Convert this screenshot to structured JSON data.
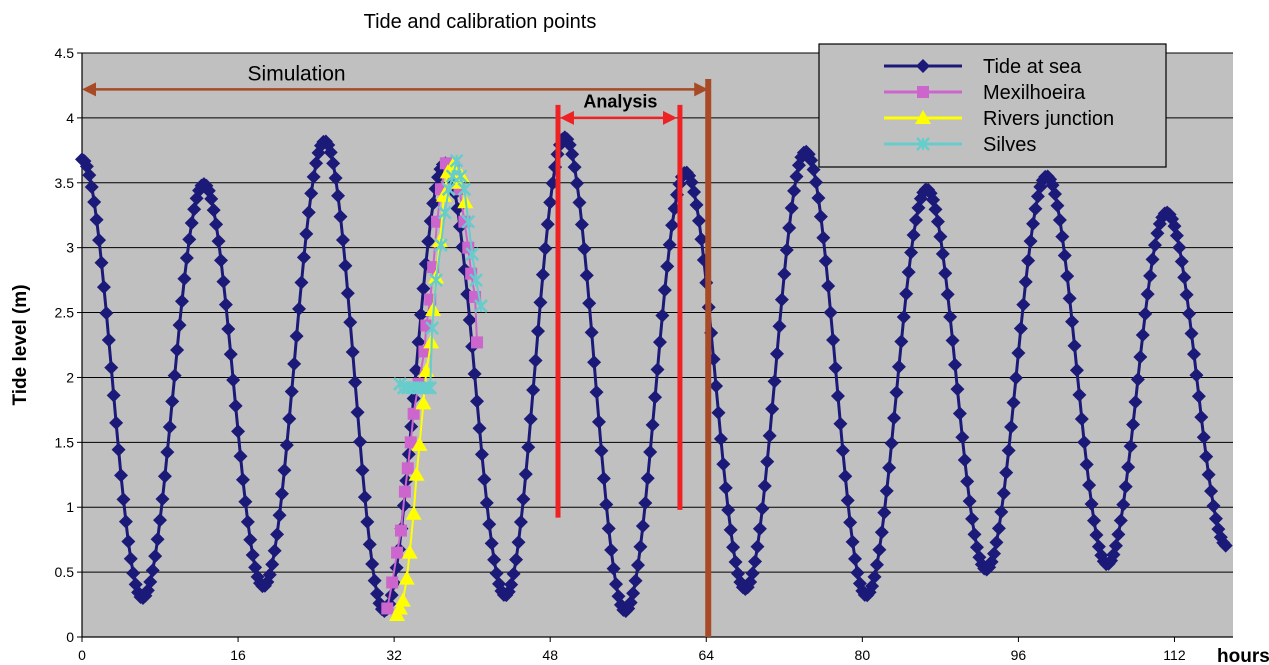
{
  "chart_data": {
    "type": "line",
    "title": "Tide and calibration points",
    "ylabel": "Tide level (m)",
    "xlabel": "hours",
    "xlim": [
      0,
      118
    ],
    "ylim": [
      0,
      4.5
    ],
    "xticks": [
      0,
      16,
      32,
      48,
      64,
      80,
      96,
      112
    ],
    "yticks": [
      0,
      0.5,
      1,
      1.5,
      2,
      2.5,
      3,
      3.5,
      4,
      4.5
    ],
    "grid": true,
    "plot_background": "#c0c0c0",
    "legend_position": "top-right",
    "tide_extrema": [
      [
        0,
        3.68
      ],
      [
        6.2,
        0.3
      ],
      [
        12.5,
        3.49
      ],
      [
        18.6,
        0.39
      ],
      [
        24.9,
        3.82
      ],
      [
        31.0,
        0.2
      ],
      [
        37.2,
        3.65
      ],
      [
        43.4,
        0.32
      ],
      [
        49.5,
        3.85
      ],
      [
        55.7,
        0.2
      ],
      [
        61.9,
        3.58
      ],
      [
        68.0,
        0.37
      ],
      [
        74.2,
        3.74
      ],
      [
        80.4,
        0.32
      ],
      [
        86.6,
        3.45
      ],
      [
        92.7,
        0.52
      ],
      [
        98.9,
        3.55
      ],
      [
        105.1,
        0.56
      ],
      [
        111.2,
        3.27
      ],
      [
        117.4,
        0.7
      ]
    ],
    "series": [
      {
        "name": "Tide at sea",
        "color": "#1c1a78",
        "marker": "diamond",
        "sampling_step_hours": 0.25
      },
      {
        "name": "Mexilhoeira",
        "color": "#cc66cc",
        "marker": "square",
        "points": [
          [
            31.3,
            0.22
          ],
          [
            31.8,
            0.42
          ],
          [
            32.3,
            0.65
          ],
          [
            32.7,
            0.82
          ],
          [
            33.1,
            1.12
          ],
          [
            33.4,
            1.3
          ],
          [
            33.7,
            1.5
          ],
          [
            34.0,
            1.72
          ],
          [
            34.5,
            1.95
          ],
          [
            35.1,
            2.2
          ],
          [
            35.3,
            2.4
          ],
          [
            35.7,
            2.6
          ],
          [
            36.0,
            2.85
          ],
          [
            36.4,
            3.2
          ],
          [
            36.8,
            3.45
          ],
          [
            37.3,
            3.65
          ],
          [
            38.1,
            3.62
          ],
          [
            38.7,
            3.45
          ],
          [
            39.2,
            3.2
          ],
          [
            39.6,
            3.0
          ],
          [
            39.9,
            2.8
          ],
          [
            40.3,
            2.62
          ],
          [
            40.5,
            2.27
          ]
        ]
      },
      {
        "name": "Rivers junction",
        "color": "#ffff00",
        "marker": "triangle",
        "points": [
          [
            32.3,
            0.17
          ],
          [
            32.6,
            0.22
          ],
          [
            32.9,
            0.28
          ],
          [
            33.3,
            0.45
          ],
          [
            33.6,
            0.65
          ],
          [
            34.0,
            0.95
          ],
          [
            34.3,
            1.25
          ],
          [
            34.6,
            1.48
          ],
          [
            35.0,
            1.8
          ],
          [
            35.3,
            2.05
          ],
          [
            35.8,
            2.27
          ],
          [
            36.0,
            2.52
          ],
          [
            36.3,
            2.77
          ],
          [
            36.7,
            3.05
          ],
          [
            37.1,
            3.4
          ],
          [
            37.5,
            3.58
          ],
          [
            38.0,
            3.63
          ],
          [
            38.5,
            3.5
          ],
          [
            38.9,
            3.55
          ],
          [
            39.3,
            3.35
          ]
        ]
      },
      {
        "name": "Silves",
        "color": "#66cccc",
        "marker": "x",
        "points": [
          [
            32.6,
            1.95
          ],
          [
            33.0,
            1.92
          ],
          [
            33.4,
            1.92
          ],
          [
            33.8,
            1.92
          ],
          [
            34.2,
            1.92
          ],
          [
            34.6,
            1.92
          ],
          [
            35.0,
            1.92
          ],
          [
            35.4,
            1.92
          ],
          [
            35.7,
            1.92
          ],
          [
            35.9,
            2.38
          ],
          [
            36.3,
            2.75
          ],
          [
            36.8,
            3.02
          ],
          [
            37.2,
            3.27
          ],
          [
            37.6,
            3.45
          ],
          [
            38.0,
            3.55
          ],
          [
            38.4,
            3.67
          ],
          [
            38.8,
            3.55
          ],
          [
            39.2,
            3.45
          ],
          [
            39.6,
            3.2
          ],
          [
            40.0,
            2.95
          ],
          [
            40.4,
            2.75
          ],
          [
            40.9,
            2.55
          ]
        ]
      }
    ],
    "annotations": [
      {
        "text": "Simulation",
        "color": "#a84a26",
        "x_start": 0,
        "x_end": 64.2,
        "y": 4.22,
        "label_x": 22.0,
        "label_y": 4.29
      },
      {
        "text": "Analysis",
        "color": "#ee2222",
        "x_start": 49.0,
        "x_end": 61.0,
        "y": 4.0,
        "label_x": 55.2,
        "label_y": 4.08
      }
    ],
    "vertical_lines": [
      {
        "name": "analysis-start-line",
        "x": 48.8,
        "y_from": 0.92,
        "y_to": 4.1,
        "color": "#ee2222"
      },
      {
        "name": "analysis-end-line",
        "x": 61.3,
        "y_from": 0.98,
        "y_to": 4.1,
        "color": "#ee2222"
      },
      {
        "name": "simulation-end-line",
        "x": 64.2,
        "y_from": 0,
        "y_to": 4.3,
        "color": "#a84a26"
      }
    ]
  }
}
